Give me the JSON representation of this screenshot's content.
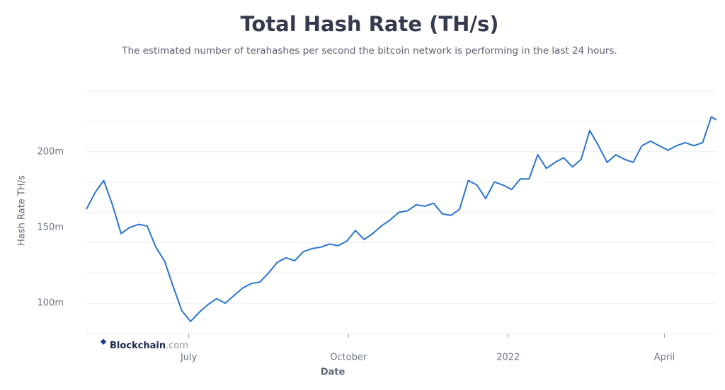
{
  "chart_data": {
    "type": "line",
    "title": "Total Hash Rate (TH/s)",
    "subtitle": "The estimated number of terahashes per second the bitcoin network is performing in the last 24 hours.",
    "x_label": "Date",
    "y_label": "Hash Rate TH/s",
    "watermark": {
      "brand": "Blockchain",
      "suffix": ".com"
    },
    "x": [
      "2021-05-03",
      "2021-05-08",
      "2021-05-13",
      "2021-05-18",
      "2021-05-23",
      "2021-05-28",
      "2021-06-02",
      "2021-06-07",
      "2021-06-12",
      "2021-06-17",
      "2021-06-22",
      "2021-06-27",
      "2021-07-02",
      "2021-07-07",
      "2021-07-12",
      "2021-07-17",
      "2021-07-22",
      "2021-07-27",
      "2021-08-01",
      "2021-08-06",
      "2021-08-11",
      "2021-08-16",
      "2021-08-21",
      "2021-08-26",
      "2021-08-31",
      "2021-09-05",
      "2021-09-10",
      "2021-09-15",
      "2021-09-20",
      "2021-09-25",
      "2021-09-30",
      "2021-10-05",
      "2021-10-10",
      "2021-10-15",
      "2021-10-20",
      "2021-10-25",
      "2021-10-30",
      "2021-11-04",
      "2021-11-09",
      "2021-11-14",
      "2021-11-19",
      "2021-11-24",
      "2021-11-29",
      "2021-12-04",
      "2021-12-09",
      "2021-12-14",
      "2021-12-19",
      "2021-12-24",
      "2021-12-29",
      "2022-01-03",
      "2022-01-08",
      "2022-01-13",
      "2022-01-18",
      "2022-01-23",
      "2022-01-28",
      "2022-02-02",
      "2022-02-07",
      "2022-02-12",
      "2022-02-17",
      "2022-02-22",
      "2022-02-27",
      "2022-03-04",
      "2022-03-09",
      "2022-03-14",
      "2022-03-19",
      "2022-03-24",
      "2022-03-29",
      "2022-04-03",
      "2022-04-08",
      "2022-04-13",
      "2022-04-18",
      "2022-04-23",
      "2022-04-28",
      "2022-05-01"
    ],
    "series": [
      {
        "name": "Hash Rate",
        "color": "#2a74cd",
        "values": [
          162000000,
          173000000,
          181000000,
          165000000,
          146000000,
          150000000,
          152000000,
          151000000,
          137000000,
          128000000,
          111000000,
          95000000,
          88000000,
          94000000,
          99000000,
          103000000,
          100000000,
          105000000,
          110000000,
          113000000,
          114000000,
          120000000,
          127000000,
          130000000,
          128000000,
          134000000,
          136000000,
          137000000,
          139000000,
          138000000,
          141000000,
          148000000,
          142000000,
          146000000,
          151000000,
          155000000,
          160000000,
          161000000,
          165000000,
          164000000,
          166000000,
          159000000,
          158000000,
          162000000,
          181000000,
          178000000,
          169000000,
          180000000,
          178000000,
          175000000,
          182000000,
          182000000,
          198000000,
          189000000,
          193000000,
          196000000,
          190000000,
          195000000,
          214000000,
          204000000,
          193000000,
          198000000,
          195000000,
          193000000,
          204000000,
          207000000,
          204000000,
          201000000,
          204000000,
          206000000,
          204000000,
          206000000,
          223000000,
          221000000
        ]
      }
    ],
    "xlim": [
      "2021-05-03",
      "2022-05-01"
    ],
    "xticks": [
      {
        "value": "2021-07-01",
        "label": "July"
      },
      {
        "value": "2021-10-01",
        "label": "October"
      },
      {
        "value": "2022-01-01",
        "label": "2022"
      },
      {
        "value": "2022-04-01",
        "label": "April"
      }
    ],
    "ylim": [
      80000000,
      240000000
    ],
    "yticks": [
      {
        "value": 100000000,
        "label": "100m"
      },
      {
        "value": 150000000,
        "label": "150m"
      },
      {
        "value": 200000000,
        "label": "200m"
      }
    ],
    "ygrid": [
      80000000,
      100000000,
      120000000,
      140000000,
      160000000,
      180000000,
      200000000,
      220000000,
      240000000
    ],
    "grid": true
  }
}
